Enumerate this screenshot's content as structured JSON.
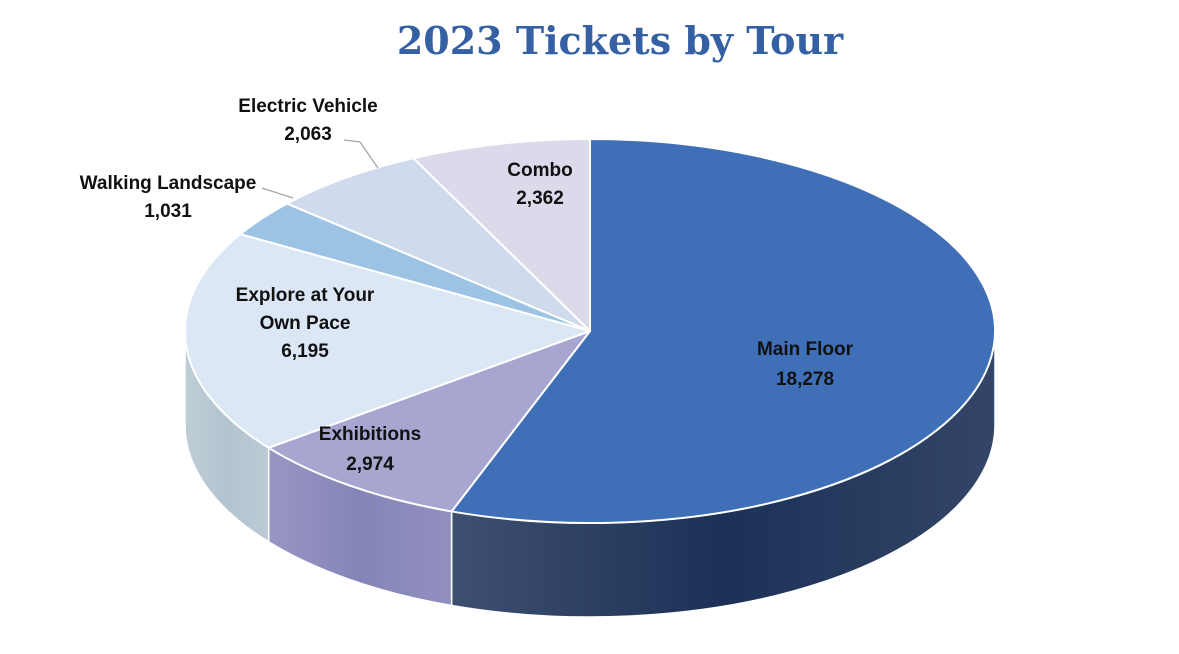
{
  "chart_data": {
    "type": "pie",
    "title": "2023 Tickets by Tour",
    "slices": [
      {
        "label": "Main Floor",
        "value": 18278,
        "value_text": "18,278",
        "color": "#3f6fb7",
        "side_color": "#1c3157"
      },
      {
        "label": "Exhibitions",
        "value": 2974,
        "value_text": "2,974",
        "color": "#a7a6d1",
        "side_color": "#8584b8"
      },
      {
        "label": "Explore at Your Own Pace",
        "label_lines": [
          "Explore at Your",
          "Own Pace"
        ],
        "value": 6195,
        "value_text": "6,195",
        "color": "#dbe7f4",
        "side_color": "#b4c4cf"
      },
      {
        "label": "Walking Landscape",
        "value": 1031,
        "value_text": "1,031",
        "color": "#9dc3e4",
        "side_color": "#7fa7c8"
      },
      {
        "label": "Electric Vehicle",
        "value": 2063,
        "value_text": "2,063",
        "color": "#cfdaed",
        "side_color": "#aab6c9"
      },
      {
        "label": "Combo",
        "value": 2362,
        "value_text": "2,362",
        "color": "#dcd9eb",
        "side_color": "#b8b5cc"
      }
    ],
    "style": "3d",
    "legend": "none",
    "data_labels": "category and value"
  }
}
